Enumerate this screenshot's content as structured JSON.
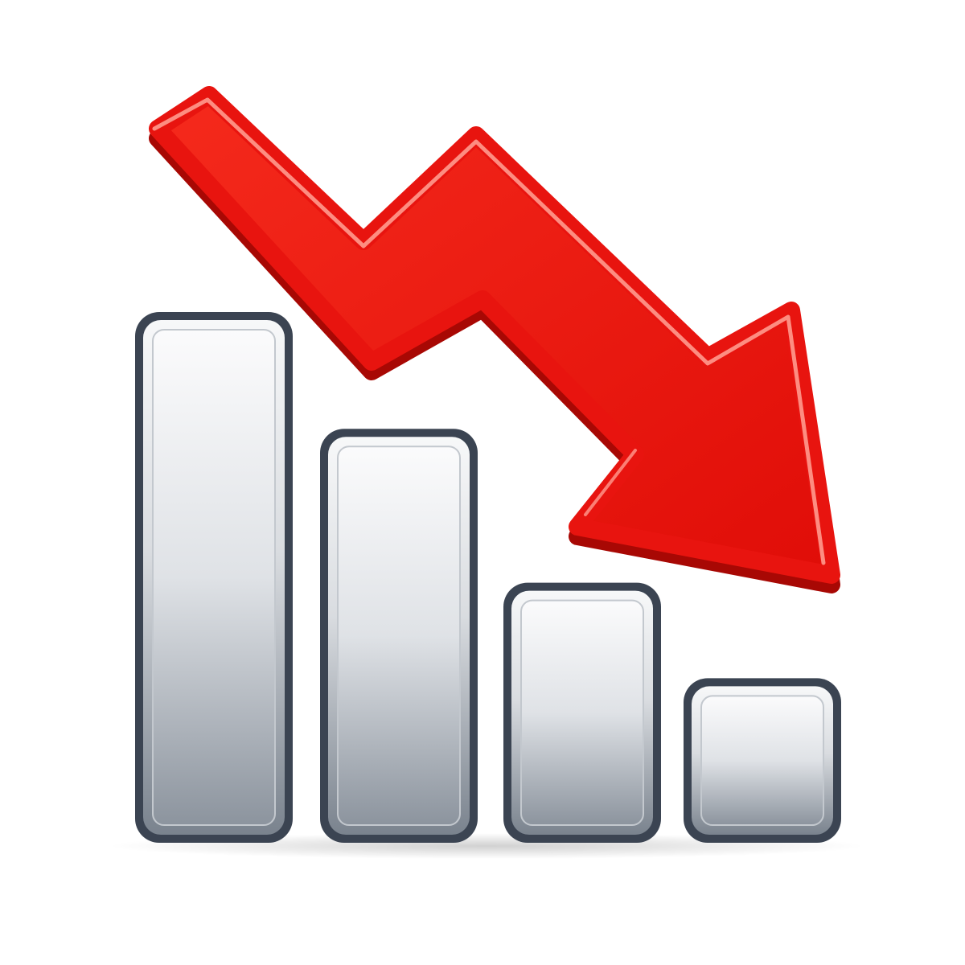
{
  "icon": {
    "name": "declining-bar-chart-with-downward-arrow-icon",
    "bars": [
      {
        "relative_height": 1.0
      },
      {
        "relative_height": 0.78
      },
      {
        "relative_height": 0.49
      },
      {
        "relative_height": 0.31
      }
    ],
    "arrow_direction": "down-right",
    "colors": {
      "background": "#ffffff",
      "arrow": "#e8140f",
      "arrow_dark": "#b30a06",
      "arrow_highlight": "#ff8a80",
      "bar_outline": "#3b4452",
      "bar_top": "#f7f8f9",
      "bar_bottom": "#7a838e"
    }
  }
}
